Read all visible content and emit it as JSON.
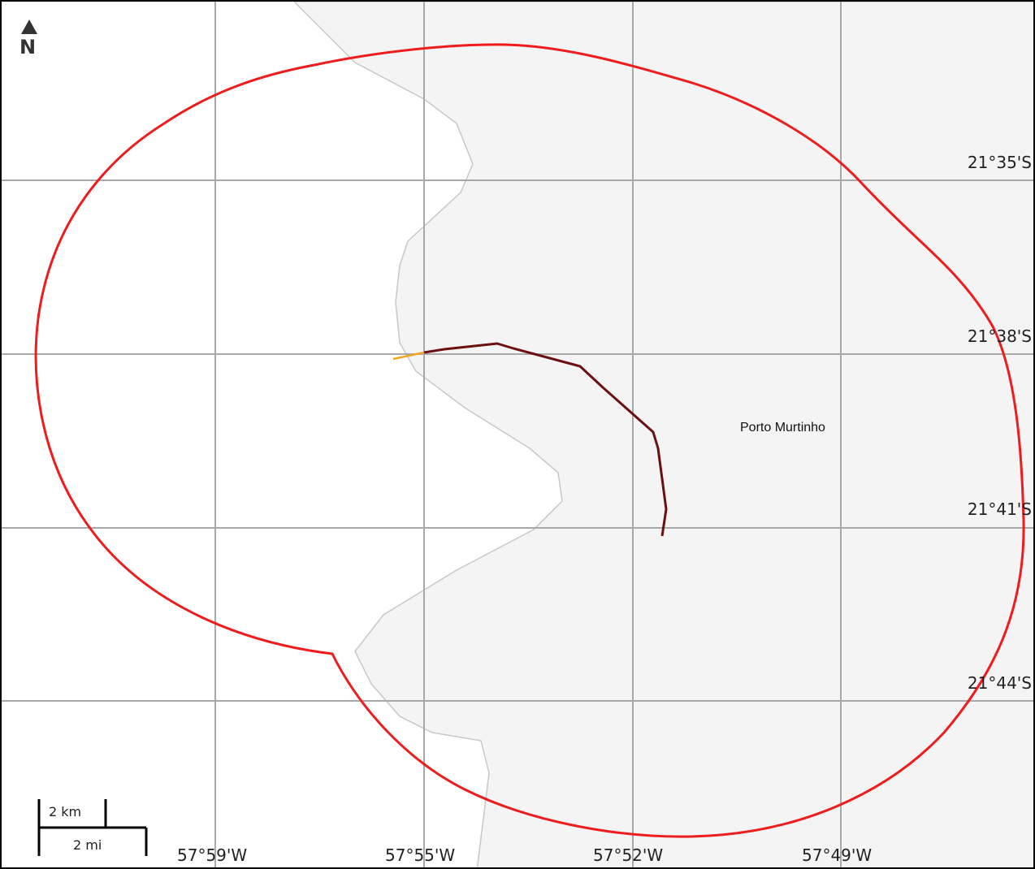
{
  "map": {
    "latitude_labels": [
      "21°35'S",
      "21°38'S",
      "21°41'S",
      "21°44'S"
    ],
    "longitude_labels": [
      "57°59'W",
      "57°55'W",
      "57°52'W",
      "57°49'W"
    ],
    "place_label": "Porto Murtinho",
    "north_label": "N",
    "scale": {
      "km_label": "2 km",
      "mi_label": "2 mi"
    },
    "colors": {
      "boundary": "#ee1c1c",
      "route": "#6b1010",
      "route_start": "#f2a41e",
      "land": "#f4f4f4",
      "grid": "#a8a8a8"
    }
  }
}
